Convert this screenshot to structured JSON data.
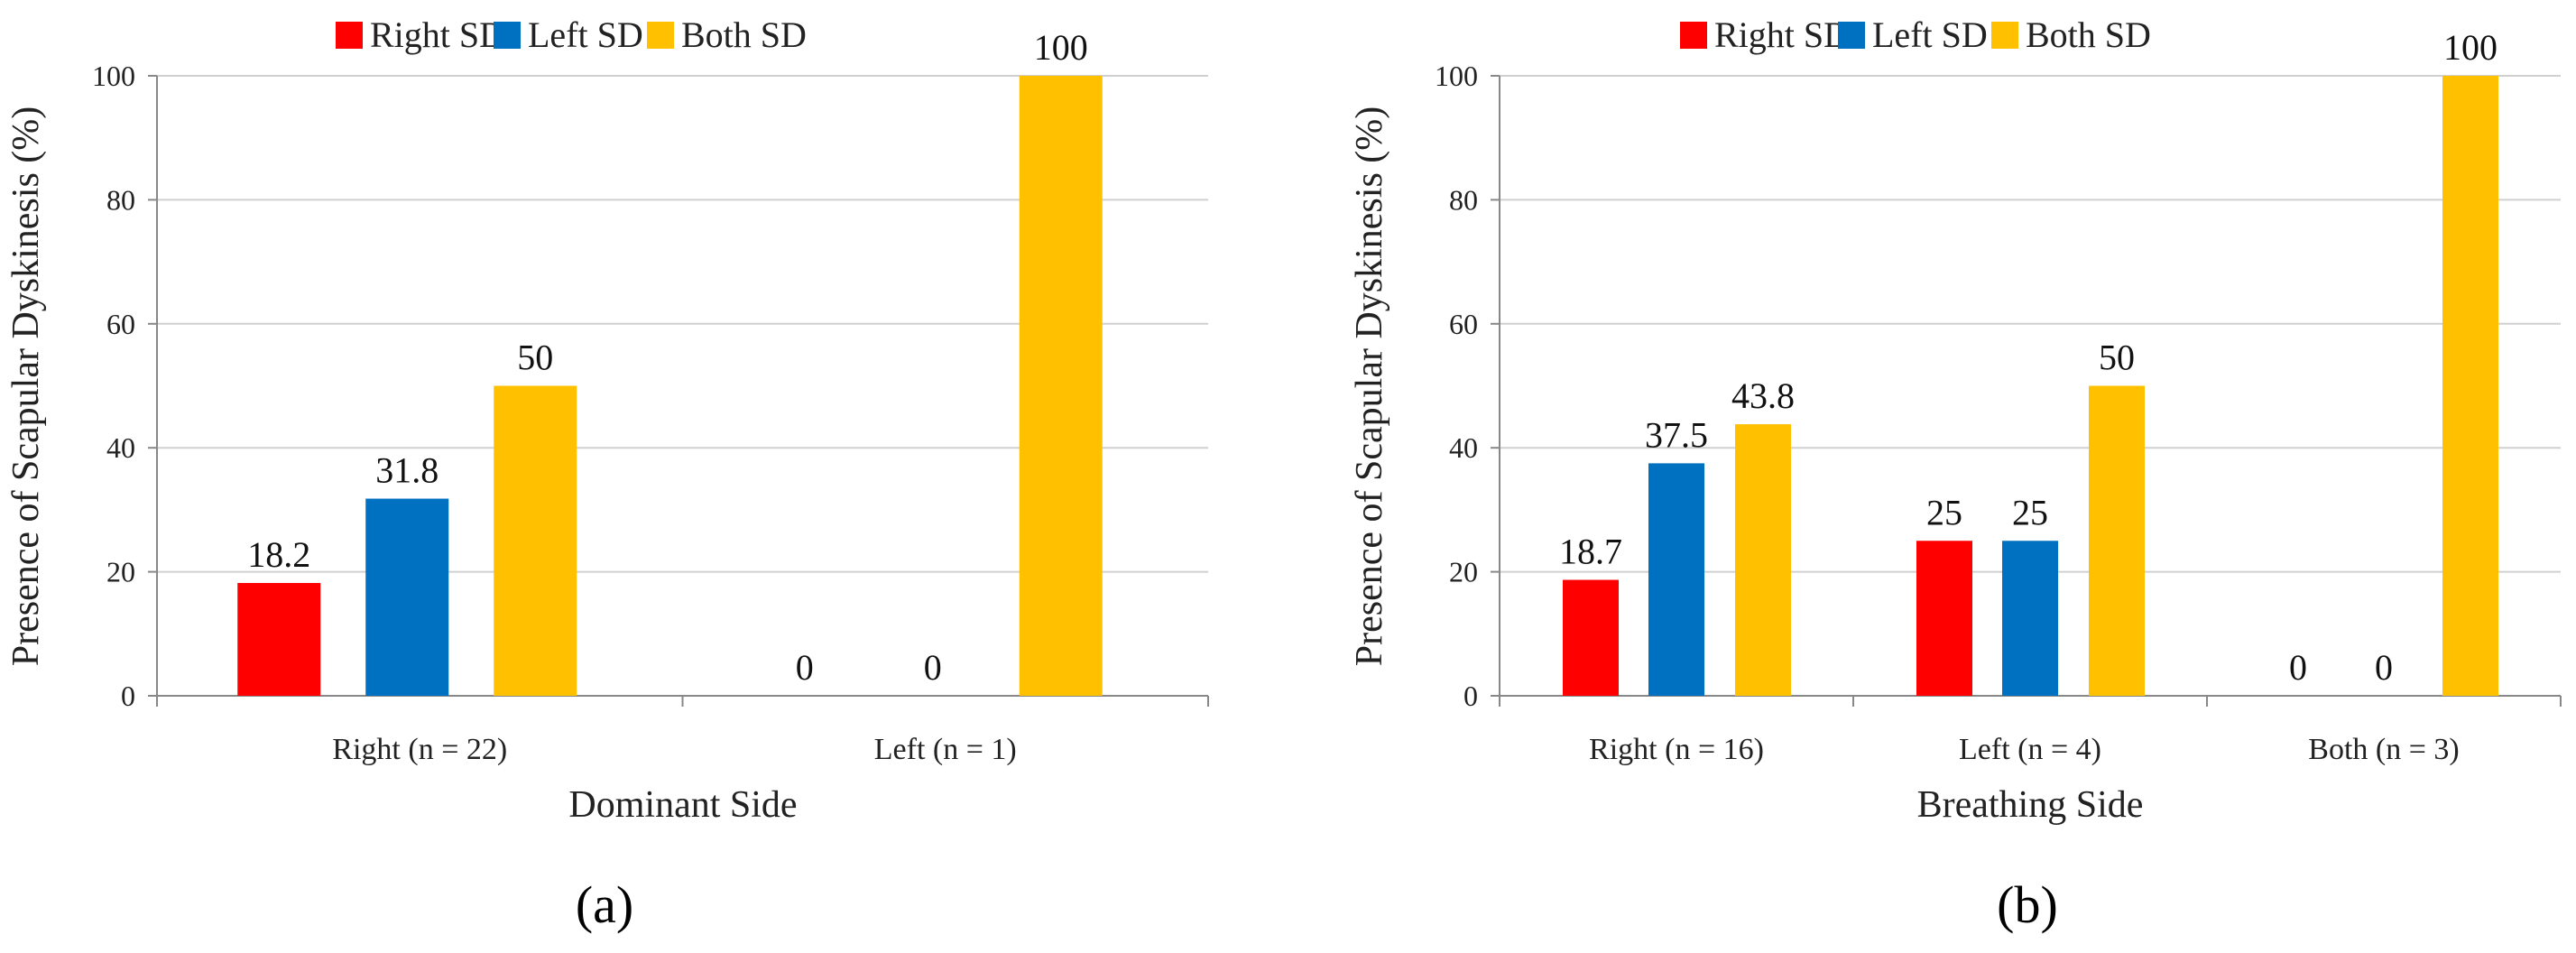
{
  "colors": {
    "right_sd": "#ff0000",
    "left_sd": "#0070c0",
    "both_sd": "#ffc000"
  },
  "legend": [
    "Right SD",
    "Left SD",
    "Both SD"
  ],
  "chart_data": [
    {
      "type": "bar",
      "panel": "(a)",
      "xlabel": "Dominant Side",
      "ylabel": "Presence of Scapular Dyskinesis  (%)",
      "ylim": [
        0,
        100
      ],
      "yticks": [
        "0",
        "20",
        "40",
        "60",
        "80",
        "100"
      ],
      "grid": true,
      "legend_position": "top",
      "categories": [
        "Right (n = 22)",
        "Left (n = 1)"
      ],
      "series": [
        {
          "name": "Right SD",
          "values": [
            18.2,
            0
          ],
          "labels": [
            "18.2",
            "0"
          ]
        },
        {
          "name": "Left SD",
          "values": [
            31.8,
            0
          ],
          "labels": [
            "31.8",
            "0"
          ]
        },
        {
          "name": "Both SD",
          "values": [
            50,
            100
          ],
          "labels": [
            "50",
            "100"
          ]
        }
      ]
    },
    {
      "type": "bar",
      "panel": "(b)",
      "xlabel": "Breathing Side",
      "ylabel": "Presence of Scapular Dyskinesis  (%)",
      "ylim": [
        0,
        100
      ],
      "yticks": [
        "0",
        "20",
        "40",
        "60",
        "80",
        "100"
      ],
      "grid": true,
      "legend_position": "top",
      "categories": [
        "Right (n = 16)",
        "Left (n = 4)",
        "Both (n = 3)"
      ],
      "series": [
        {
          "name": "Right SD",
          "values": [
            18.7,
            25,
            0
          ],
          "labels": [
            "18.7",
            "25",
            "0"
          ]
        },
        {
          "name": "Left SD",
          "values": [
            37.5,
            25,
            0
          ],
          "labels": [
            "37.5",
            "25",
            "0"
          ]
        },
        {
          "name": "Both SD",
          "values": [
            43.8,
            50,
            100
          ],
          "labels": [
            "43.8",
            "50",
            "100"
          ]
        }
      ]
    }
  ]
}
